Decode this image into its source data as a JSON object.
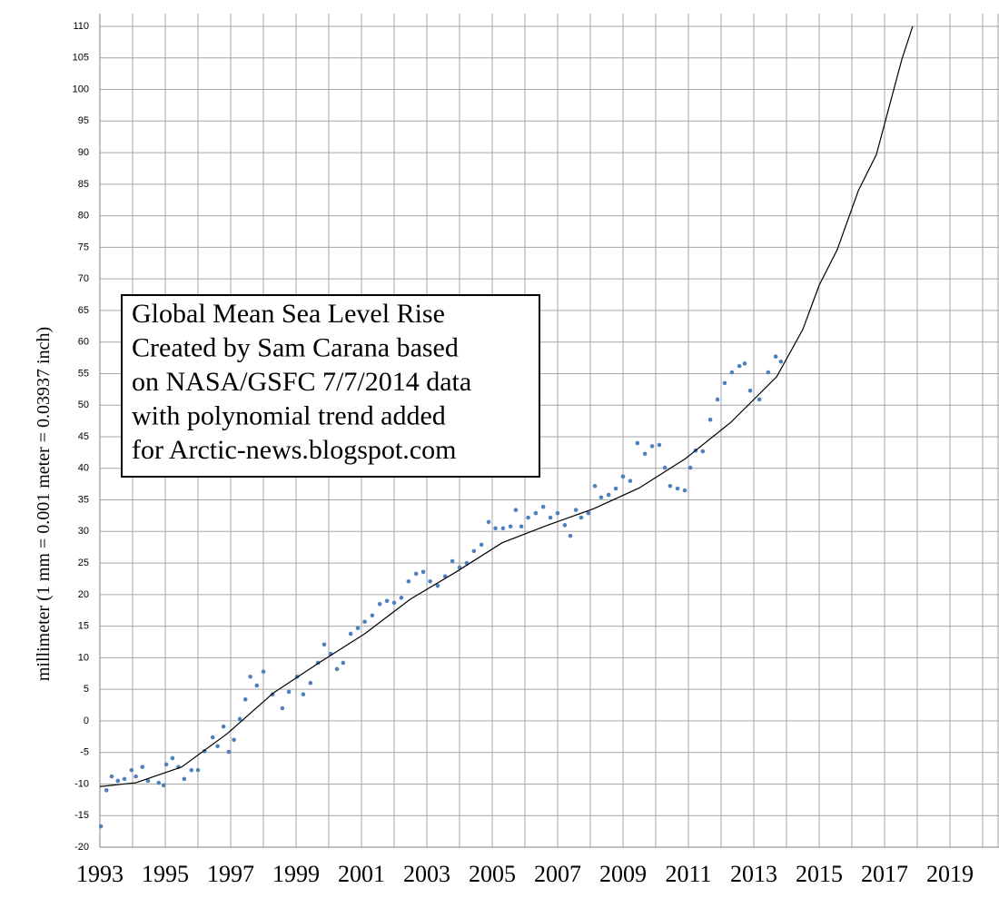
{
  "chart_data": {
    "type": "scatter",
    "annotation": [
      "Global Mean Sea Level Rise",
      "Created by Sam Carana based",
      "on NASA/GSFC 7/7/2014 data",
      "with polynomial trend added",
      "for Arctic-news.blogspot.com"
    ],
    "ylabel": "millimeter (1 mm = 0.001 meter = 0.03937 inch)",
    "xlim": [
      1993,
      2020.5
    ],
    "xticks": [
      1993,
      1995,
      1997,
      1999,
      2001,
      2003,
      2005,
      2007,
      2009,
      2011,
      2013,
      2015,
      2017,
      2019
    ],
    "xgrid_step": 1,
    "ylim": [
      -20,
      110
    ],
    "yticks": [
      -20,
      -15,
      -10,
      -5,
      0,
      5,
      10,
      15,
      20,
      25,
      30,
      35,
      40,
      45,
      50,
      55,
      60,
      65,
      70,
      75,
      80,
      85,
      90,
      95,
      100,
      105,
      110
    ],
    "grid": true,
    "series": [
      {
        "type": "scatter",
        "color": "#4f81bd",
        "x": [
          1993.03,
          1993.2,
          1993.36,
          1993.55,
          1993.75,
          1993.97,
          1994.1,
          1994.3,
          1994.47,
          1994.8,
          1994.95,
          1995.03,
          1995.22,
          1995.4,
          1995.58,
          1995.8,
          1996.0,
          1996.2,
          1996.45,
          1996.6,
          1996.78,
          1996.94,
          1997.1,
          1997.28,
          1997.45,
          1997.6,
          1997.8,
          1998.0,
          1998.28,
          1998.58,
          1998.78,
          1999.03,
          1999.22,
          1999.44,
          1999.67,
          1999.86,
          2000.06,
          2000.25,
          2000.44,
          2000.67,
          2000.89,
          2001.1,
          2001.33,
          2001.56,
          2001.78,
          2002.0,
          2002.22,
          2002.44,
          2002.67,
          2002.89,
          2003.1,
          2003.33,
          2003.56,
          2003.78,
          2004.0,
          2004.22,
          2004.44,
          2004.67,
          2004.89,
          2005.1,
          2005.33,
          2005.56,
          2005.72,
          2005.89,
          2006.1,
          2006.33,
          2006.56,
          2006.78,
          2007.0,
          2007.22,
          2007.39,
          2007.56,
          2007.72,
          2007.94,
          2008.14,
          2008.33,
          2008.56,
          2008.78,
          2009.0,
          2009.22,
          2009.44,
          2009.67,
          2009.89,
          2010.11,
          2010.28,
          2010.44,
          2010.67,
          2010.89,
          2011.06,
          2011.22,
          2011.44,
          2011.67,
          2011.89,
          2012.11,
          2012.33,
          2012.56,
          2012.72,
          2012.89,
          2013.17,
          2013.44,
          2013.67,
          2013.83
        ],
        "values": [
          -16.7,
          -11,
          -8.8,
          -9.5,
          -9.2,
          -7.8,
          -8.8,
          -7.3,
          -9.5,
          -9.8,
          -10.2,
          -6.9,
          -5.9,
          -7.3,
          -9.2,
          -7.8,
          -7.8,
          -4.8,
          -2.6,
          -4,
          -0.9,
          -4.9,
          -3,
          0.3,
          3.4,
          7,
          5.6,
          7.8,
          4.2,
          2,
          4.6,
          7,
          4.2,
          6,
          9.2,
          12.1,
          10.6,
          8.2,
          9.2,
          13.8,
          14.7,
          15.7,
          16.7,
          18.5,
          19,
          18.7,
          19.5,
          22.1,
          23.3,
          23.6,
          22.1,
          21.4,
          22.9,
          25.3,
          24.3,
          25,
          26.9,
          27.9,
          31.5,
          30.5,
          30.5,
          30.8,
          33.4,
          30.8,
          32.2,
          32.9,
          33.9,
          32.2,
          32.9,
          31,
          29.3,
          33.4,
          32.2,
          32.9,
          37.2,
          35.4,
          35.8,
          36.8,
          38.7,
          38,
          44,
          42.3,
          43.5,
          43.7,
          40.1,
          37.2,
          36.8,
          36.5,
          40.1,
          42.8,
          42.7,
          47.7,
          50.9,
          53.5,
          55.2,
          56.2,
          56.6,
          52.3,
          50.9,
          55.2,
          57.7,
          56.9
        ]
      },
      {
        "type": "line",
        "color": "#000000",
        "x": [
          1993,
          1994.1,
          1995.5,
          1996.9,
          1998.3,
          1999.7,
          2001.1,
          2002.5,
          2003.9,
          2005.3,
          2006.7,
          2008.1,
          2009.5,
          2010.9,
          2012.3,
          2013.7,
          2014.5,
          2015.0,
          2015.55,
          2016.2,
          2016.75,
          2017.53,
          2017.86
        ],
        "values": [
          -10.4,
          -9.8,
          -7.3,
          -2,
          4.4,
          9.2,
          13.8,
          19.3,
          23.6,
          28.2,
          31,
          33.6,
          36.9,
          41.5,
          47.3,
          54.5,
          62,
          69,
          74.6,
          84,
          89.7,
          104.8,
          110
        ]
      }
    ]
  }
}
